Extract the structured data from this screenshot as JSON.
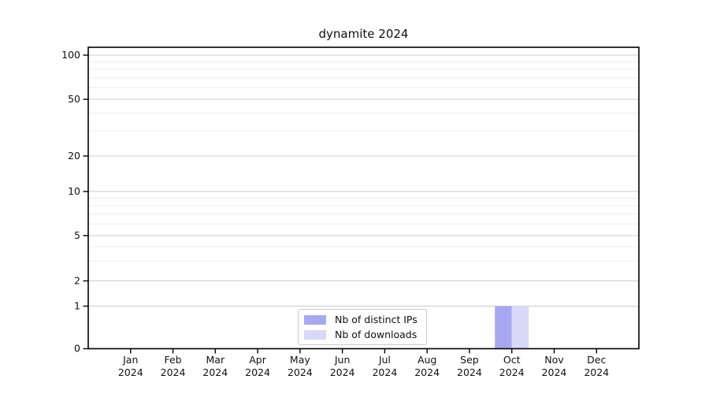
{
  "figure": {
    "title": "dynamite 2024",
    "background_color": "#ffffff"
  },
  "chart_data": {
    "type": "bar",
    "title": "dynamite 2024",
    "categories": [
      "Jan",
      "Feb",
      "Mar",
      "Apr",
      "May",
      "Jun",
      "Jul",
      "Aug",
      "Sep",
      "Oct",
      "Nov",
      "Dec"
    ],
    "x_tick_second_line": "2024",
    "series": [
      {
        "name": "Nb of distinct IPs",
        "color": "#a8a8f2",
        "values": [
          0,
          0,
          0,
          0,
          0,
          0,
          0,
          0,
          0,
          1,
          0,
          0
        ]
      },
      {
        "name": "Nb of downloads",
        "color": "#d9d9f7",
        "values": [
          0,
          0,
          0,
          0,
          0,
          0,
          0,
          0,
          0,
          1,
          0,
          0
        ]
      }
    ],
    "xlabel": "",
    "ylabel": "",
    "yscale": "log-like (symlog, linear below 1)",
    "yticks": [
      0,
      1,
      2,
      5,
      10,
      20,
      50,
      100
    ],
    "yticks_minor": [
      3,
      4,
      6,
      7,
      8,
      9,
      30,
      40,
      60,
      70,
      80,
      90
    ],
    "ylim": [
      0,
      107
    ],
    "grid": "horizontal",
    "legend": {
      "position": "inside-bottom-center",
      "entries": [
        "Nb of distinct IPs",
        "Nb of downloads"
      ]
    },
    "axis_color": "#000000",
    "grid_major_color": "#cccccc",
    "grid_minor_color": "#ececec",
    "text_color": "#111111"
  }
}
